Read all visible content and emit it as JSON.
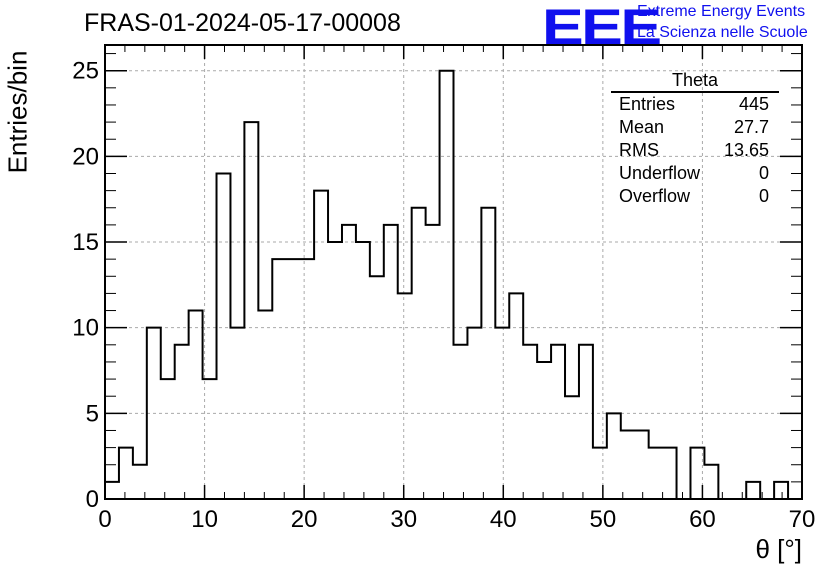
{
  "header": {
    "run_title": "FRAS-01-2024-05-17-00008",
    "logo_text": "EEE",
    "org_line1": "Extreme Energy Events",
    "org_line2": "La Scienza nelle Scuole"
  },
  "stats_box": {
    "title": "Theta",
    "rows": [
      {
        "label": "Entries",
        "value": "445"
      },
      {
        "label": "Mean",
        "value": "27.7"
      },
      {
        "label": "RMS",
        "value": "13.65"
      },
      {
        "label": "Underflow",
        "value": "0"
      },
      {
        "label": "Overflow",
        "value": "0"
      }
    ]
  },
  "chart_data": {
    "type": "bar",
    "title": "FRAS-01-2024-05-17-00008",
    "xlabel": "θ [°]",
    "ylabel": "Entries/bin",
    "xlim": [
      0,
      70
    ],
    "ylim": [
      0,
      26.5
    ],
    "x_ticks": [
      0,
      10,
      20,
      30,
      40,
      50,
      60,
      70
    ],
    "y_ticks": [
      0,
      5,
      10,
      15,
      20,
      25
    ],
    "grid": true,
    "legend": "top-right",
    "bin_width": 1.4,
    "values": [
      1,
      3,
      2,
      10,
      7,
      9,
      11,
      7,
      19,
      10,
      22,
      11,
      14,
      14,
      14,
      18,
      15,
      16,
      15,
      13,
      16,
      12,
      17,
      16,
      25,
      9,
      10,
      17,
      10,
      12,
      9,
      8,
      9,
      6,
      9,
      3,
      5,
      4,
      4,
      3,
      3,
      0,
      3,
      2,
      0,
      0,
      1,
      0,
      1,
      0
    ]
  }
}
